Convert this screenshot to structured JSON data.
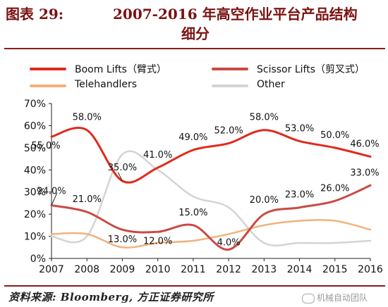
{
  "header": {
    "label": "图表 29:",
    "title_line1": "2007-2016 年高空作业平台产品结构",
    "title_line2": "细分"
  },
  "source": "资料来源: Bloomberg, 方正证券研究所",
  "watermark": "机械自动团队",
  "colors": {
    "title": "#7a1212",
    "rule": "#8b1c1c",
    "boom": "#e02a1c",
    "scissor": "#c94a45",
    "telehandlers": "#f2b27a",
    "other": "#d4d4d4"
  },
  "chart_data": {
    "type": "line",
    "x": [
      "2007",
      "2008",
      "2009",
      "2010",
      "2011",
      "2012",
      "2013",
      "2014",
      "2015",
      "2016"
    ],
    "ylim": [
      0,
      70
    ],
    "yticks": [
      "0%",
      "10%",
      "20%",
      "30%",
      "40%",
      "50%",
      "60%",
      "70%"
    ],
    "grid": false,
    "legend_position": "top",
    "series": [
      {
        "name": "Boom Lifts（臂式）",
        "key": "boom",
        "values": [
          55,
          58,
          35,
          41,
          49,
          52,
          58,
          53,
          50,
          46
        ],
        "labels": [
          "55.0%",
          "58.0%",
          "35.0%",
          "41.0%",
          "49.0%",
          "52.0%",
          "58.0%",
          "53.0%",
          "50.0%",
          "46.0%"
        ]
      },
      {
        "name": "Scissor Lifts（剪叉式）",
        "key": "scissor",
        "values": [
          24,
          21,
          13,
          12,
          15,
          4,
          20,
          23,
          26,
          33
        ],
        "labels": [
          "24.0%",
          "21.0%",
          "13.0%",
          "12.0%",
          "15.0%",
          "4.0%",
          "20.0%",
          "23.0%",
          "26.0%",
          "33.0%"
        ]
      },
      {
        "name": "Telehandlers",
        "key": "telehandlers",
        "values": [
          11,
          11,
          5,
          7,
          8,
          11,
          15,
          17,
          17,
          13
        ]
      },
      {
        "name": "Other",
        "key": "other",
        "values": [
          10,
          10,
          47,
          40,
          28,
          23,
          7,
          7,
          7,
          8
        ]
      }
    ]
  }
}
